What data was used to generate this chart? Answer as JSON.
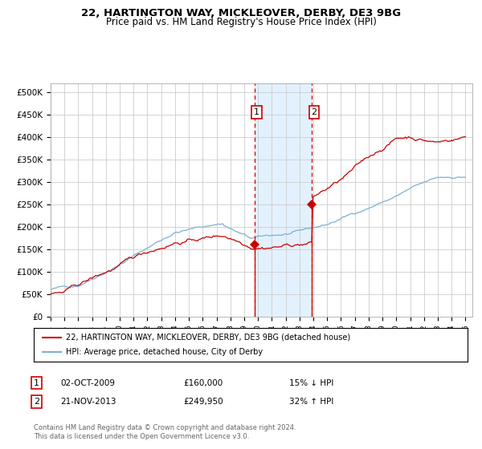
{
  "title": "22, HARTINGTON WAY, MICKLEOVER, DERBY, DE3 9BG",
  "subtitle": "Price paid vs. HM Land Registry's House Price Index (HPI)",
  "title_fontsize": 9.5,
  "subtitle_fontsize": 8.5,
  "ylabel_values": [
    "£0",
    "£50K",
    "£100K",
    "£150K",
    "£200K",
    "£250K",
    "£300K",
    "£350K",
    "£400K",
    "£450K",
    "£500K"
  ],
  "yticks": [
    0,
    50000,
    100000,
    150000,
    200000,
    250000,
    300000,
    350000,
    400000,
    450000,
    500000
  ],
  "ylim": [
    0,
    520000
  ],
  "xlim_start": 1995.0,
  "xlim_end": 2025.5,
  "hpi_color": "#7ab0d4",
  "price_color": "#cc0000",
  "background_color": "#ffffff",
  "grid_color": "#cccccc",
  "purchase1_x": 2009.75,
  "purchase1_y": 160000,
  "purchase1_label": "1",
  "purchase1_date": "02-OCT-2009",
  "purchase1_price": "£160,000",
  "purchase1_hpi": "15% ↓ HPI",
  "purchase2_x": 2013.9,
  "purchase2_y": 249950,
  "purchase2_label": "2",
  "purchase2_date": "21-NOV-2013",
  "purchase2_price": "£249,950",
  "purchase2_hpi": "32% ↑ HPI",
  "shade_x1": 2009.75,
  "shade_x2": 2013.9,
  "legend_line1": "22, HARTINGTON WAY, MICKLEOVER, DERBY, DE3 9BG (detached house)",
  "legend_line2": "HPI: Average price, detached house, City of Derby",
  "footnote": "Contains HM Land Registry data © Crown copyright and database right 2024.\nThis data is licensed under the Open Government Licence v3.0.",
  "xtick_years": [
    1995,
    1996,
    1997,
    1998,
    1999,
    2000,
    2001,
    2002,
    2003,
    2004,
    2005,
    2006,
    2007,
    2008,
    2009,
    2010,
    2011,
    2012,
    2013,
    2014,
    2015,
    2016,
    2017,
    2018,
    2019,
    2020,
    2021,
    2022,
    2023,
    2024,
    2025
  ]
}
